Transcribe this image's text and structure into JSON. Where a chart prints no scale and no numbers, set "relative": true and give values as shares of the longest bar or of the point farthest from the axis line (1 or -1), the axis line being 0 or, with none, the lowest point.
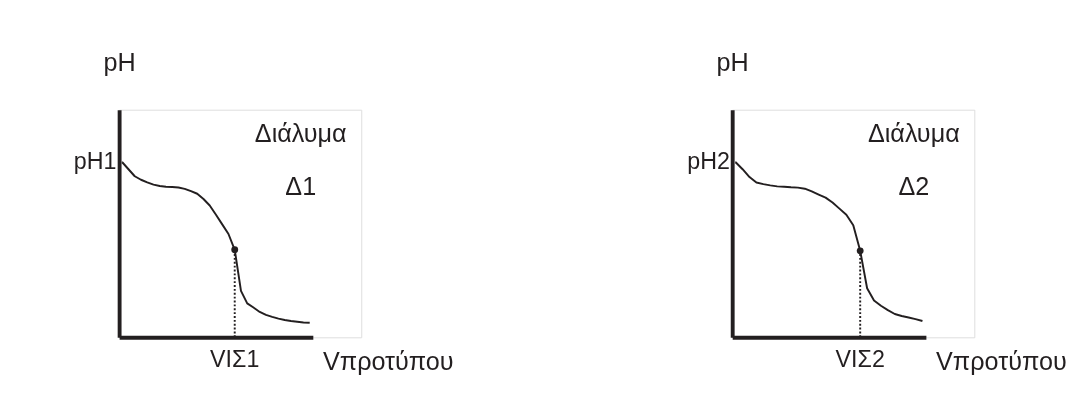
{
  "chart_data": [
    {
      "type": "line",
      "xlabel": "Vπροτύπου",
      "ylabel": "pH",
      "relative": true,
      "marker": "none",
      "line_style": "solid",
      "annotations": [
        "Διάλυμα",
        "Δ1",
        "VΙΣ1",
        "pH1"
      ],
      "categories": [
        null,
        null,
        null,
        null,
        null,
        null,
        null,
        null,
        null,
        null,
        null,
        null,
        null,
        null,
        null,
        null,
        null,
        null,
        null,
        null,
        null,
        null,
        null,
        null,
        null,
        null,
        null,
        null,
        null,
        null,
        null
      ],
      "series": [
        {
          "color": "#231f20",
          "values": [
            1,
            0.96,
            0.92,
            0.9,
            0.885,
            0.872,
            0.864,
            0.86,
            0.859,
            0.856,
            0.848,
            0.835,
            0.82,
            0.79,
            0.753,
            0.7,
            0.645,
            0.59,
            0.5,
            0.265,
            0.194,
            0.17,
            0.145,
            0.128,
            0.117,
            0.107,
            0.099,
            0.093,
            0.089,
            0.085,
            0.083
          ]
        }
      ]
    },
    {
      "type": "line",
      "xlabel": "Vπροτύπου",
      "ylabel": "pH",
      "relative": true,
      "marker": "none",
      "line_style": "solid",
      "annotations": [
        "Διάλυμα",
        "Δ2",
        "VΙΣ2",
        "pH2"
      ],
      "categories": [
        null,
        null,
        null,
        null,
        null,
        null,
        null,
        null,
        null,
        null,
        null,
        null,
        null,
        null,
        null,
        null,
        null,
        null,
        null,
        null,
        null,
        null,
        null,
        null,
        null,
        null,
        null,
        null
      ],
      "series": [
        {
          "color": "#231f20",
          "values": [
            1,
            0.96,
            0.915,
            0.884,
            0.875,
            0.868,
            0.862,
            0.86,
            0.857,
            0.855,
            0.849,
            0.833,
            0.815,
            0.798,
            0.77,
            0.735,
            0.7,
            0.64,
            0.494,
            0.28,
            0.21,
            0.18,
            0.155,
            0.133,
            0.122,
            0.113,
            0.104,
            0.093
          ]
        }
      ]
    }
  ]
}
